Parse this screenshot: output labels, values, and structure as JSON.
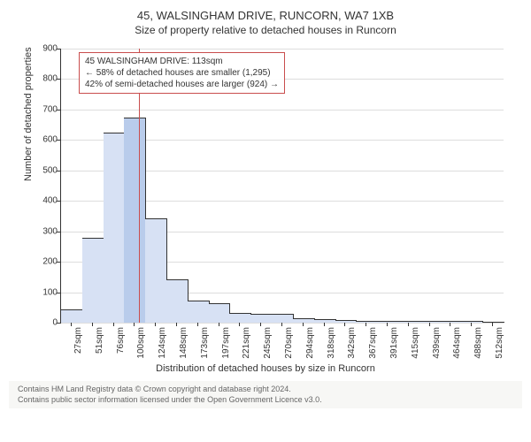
{
  "title": "45, WALSINGHAM DRIVE, RUNCORN, WA7 1XB",
  "subtitle": "Size of property relative to detached houses in Runcorn",
  "ylabel": "Number of detached properties",
  "xlabel": "Distribution of detached houses by size in Runcorn",
  "chart": {
    "type": "histogram",
    "ylim": [
      0,
      900
    ],
    "ytick_step": 100,
    "yticks": [
      0,
      100,
      200,
      300,
      400,
      500,
      600,
      700,
      800,
      900
    ],
    "xticks": [
      "27sqm",
      "51sqm",
      "76sqm",
      "100sqm",
      "124sqm",
      "148sqm",
      "173sqm",
      "197sqm",
      "221sqm",
      "245sqm",
      "270sqm",
      "294sqm",
      "318sqm",
      "342sqm",
      "367sqm",
      "391sqm",
      "415sqm",
      "439sqm",
      "464sqm",
      "488sqm",
      "512sqm"
    ],
    "bars": [
      40,
      275,
      620,
      670,
      340,
      140,
      70,
      60,
      30,
      25,
      25,
      12,
      8,
      6,
      4,
      3,
      3,
      3,
      2,
      2,
      1
    ],
    "bar_fill": "#d7e1f4",
    "bar_stroke": "#333333",
    "highlight_fill": "#b9cceb",
    "highlight_index": 3,
    "grid_color": "#dddddd",
    "background_color": "#ffffff",
    "marker_line_color": "#c94d4d",
    "marker_position_pct": 17.5
  },
  "annotation": {
    "line1": "45 WALSINGHAM DRIVE: 113sqm",
    "line2": "← 58% of detached houses are smaller (1,295)",
    "line3": "42% of semi-detached houses are larger (924) →",
    "border_color": "#c94d4d"
  },
  "footer_line1": "Contains HM Land Registry data © Crown copyright and database right 2024.",
  "footer_line2": "Contains public sector information licensed under the Open Government Licence v3.0."
}
